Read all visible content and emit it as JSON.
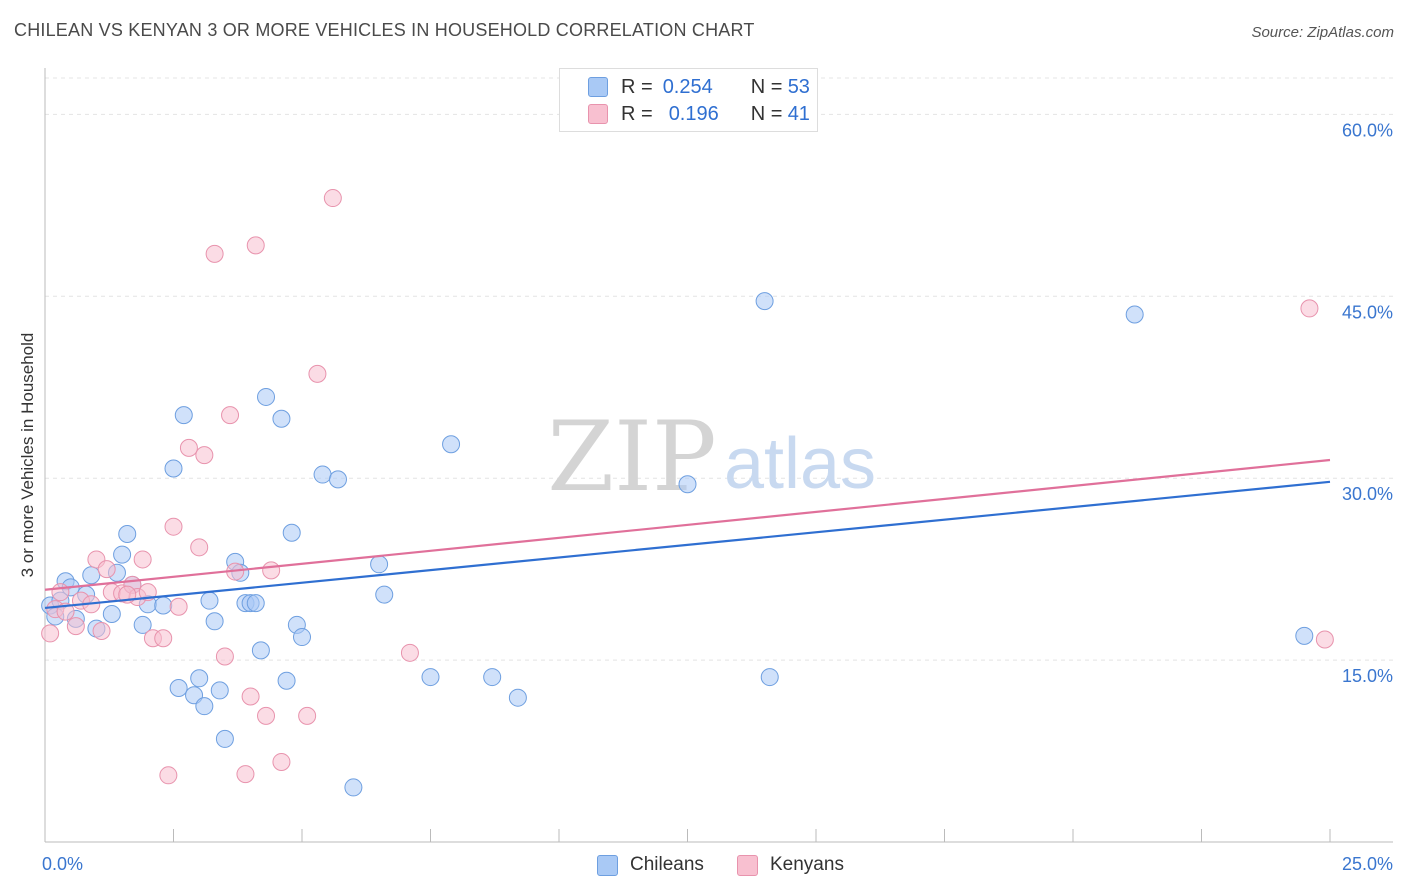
{
  "title": "CHILEAN VS KENYAN 3 OR MORE VEHICLES IN HOUSEHOLD CORRELATION CHART",
  "source": "Source: ZipAtlas.com",
  "watermark": {
    "zip": "ZIP",
    "atlas": "atlas"
  },
  "legend": {
    "rows": [
      {
        "r_label": "R =",
        "r_value": "0.254",
        "n_label": "N =",
        "n_value": "53",
        "color": "#a9c9f5",
        "border": "#6e9fe0"
      },
      {
        "r_label": "R =",
        "r_value": "0.196",
        "n_label": "N =",
        "n_value": "41",
        "color": "#f8c0d0",
        "border": "#e893ad"
      }
    ]
  },
  "bottom_legend": [
    {
      "label": "Chileans",
      "color": "#a9c9f5",
      "border": "#6e9fe0"
    },
    {
      "label": "Kenyans",
      "color": "#f8c0d0",
      "border": "#e893ad"
    }
  ],
  "chart_data": {
    "type": "scatter",
    "xlabel": "",
    "ylabel": "3 or more Vehicles in Household",
    "xlim": [
      0,
      25
    ],
    "ylim": [
      0,
      63
    ],
    "x_tick_labels": [
      "0.0%",
      "25.0%"
    ],
    "y_tick_labels": [
      "15.0%",
      "30.0%",
      "45.0%",
      "60.0%"
    ],
    "y_ticks": [
      15,
      30,
      45,
      60
    ],
    "series": [
      {
        "name": "Chileans",
        "color": "#a9c9f5",
        "stroke": "#6e9fe0",
        "line_color": "#2f6fd1",
        "trend": {
          "x": [
            0,
            25
          ],
          "y": [
            19.3,
            29.7
          ]
        },
        "points": [
          [
            0.1,
            19.5
          ],
          [
            0.2,
            18.6
          ],
          [
            0.3,
            19.9
          ],
          [
            0.4,
            21.5
          ],
          [
            0.5,
            21.0
          ],
          [
            0.6,
            18.4
          ],
          [
            0.8,
            20.4
          ],
          [
            0.9,
            22.0
          ],
          [
            1.0,
            17.6
          ],
          [
            1.3,
            18.8
          ],
          [
            1.4,
            22.2
          ],
          [
            1.5,
            23.7
          ],
          [
            1.6,
            25.4
          ],
          [
            1.7,
            21.2
          ],
          [
            1.9,
            17.9
          ],
          [
            2.0,
            19.6
          ],
          [
            2.3,
            19.5
          ],
          [
            2.5,
            30.8
          ],
          [
            2.6,
            12.7
          ],
          [
            2.7,
            35.2
          ],
          [
            2.9,
            12.1
          ],
          [
            3.0,
            13.5
          ],
          [
            3.1,
            11.2
          ],
          [
            3.2,
            19.9
          ],
          [
            3.3,
            18.2
          ],
          [
            3.4,
            12.5
          ],
          [
            3.5,
            8.5
          ],
          [
            3.7,
            23.1
          ],
          [
            3.8,
            22.2
          ],
          [
            3.9,
            19.7
          ],
          [
            4.0,
            19.7
          ],
          [
            4.1,
            19.7
          ],
          [
            4.2,
            15.8
          ],
          [
            4.3,
            36.7
          ],
          [
            4.6,
            34.9
          ],
          [
            4.7,
            13.3
          ],
          [
            4.8,
            25.5
          ],
          [
            4.9,
            17.9
          ],
          [
            5.0,
            16.9
          ],
          [
            5.4,
            30.3
          ],
          [
            5.7,
            29.9
          ],
          [
            6.0,
            4.5
          ],
          [
            6.5,
            22.9
          ],
          [
            6.6,
            20.4
          ],
          [
            7.5,
            13.6
          ],
          [
            7.9,
            32.8
          ],
          [
            8.7,
            13.6
          ],
          [
            9.2,
            11.9
          ],
          [
            12.5,
            29.5
          ],
          [
            14.0,
            44.6
          ],
          [
            14.1,
            13.6
          ],
          [
            21.2,
            43.5
          ],
          [
            24.5,
            17.0
          ]
        ]
      },
      {
        "name": "Kenyans",
        "color": "#f8c0d0",
        "stroke": "#e893ad",
        "line_color": "#e0709a",
        "trend": {
          "x": [
            0,
            25
          ],
          "y": [
            20.8,
            31.5
          ]
        },
        "points": [
          [
            0.1,
            17.2
          ],
          [
            0.2,
            19.2
          ],
          [
            0.3,
            20.6
          ],
          [
            0.6,
            17.8
          ],
          [
            0.7,
            19.9
          ],
          [
            0.9,
            19.6
          ],
          [
            1.0,
            23.3
          ],
          [
            1.1,
            17.4
          ],
          [
            1.2,
            22.5
          ],
          [
            1.3,
            20.6
          ],
          [
            1.5,
            20.5
          ],
          [
            1.7,
            21.2
          ],
          [
            1.8,
            20.2
          ],
          [
            1.9,
            23.3
          ],
          [
            2.0,
            20.6
          ],
          [
            2.1,
            16.8
          ],
          [
            2.3,
            16.8
          ],
          [
            2.5,
            26.0
          ],
          [
            2.6,
            19.4
          ],
          [
            2.8,
            32.5
          ],
          [
            3.0,
            24.3
          ],
          [
            3.1,
            31.9
          ],
          [
            3.3,
            48.5
          ],
          [
            3.5,
            15.3
          ],
          [
            3.6,
            35.2
          ],
          [
            3.7,
            22.3
          ],
          [
            4.0,
            12.0
          ],
          [
            4.1,
            49.2
          ],
          [
            4.3,
            10.4
          ],
          [
            4.4,
            22.4
          ],
          [
            4.6,
            6.6
          ],
          [
            5.1,
            10.4
          ],
          [
            5.3,
            38.6
          ],
          [
            5.6,
            53.1
          ],
          [
            7.1,
            15.6
          ],
          [
            24.6,
            44.0
          ],
          [
            24.9,
            16.7
          ],
          [
            2.4,
            5.5
          ],
          [
            3.9,
            5.6
          ],
          [
            1.6,
            20.4
          ],
          [
            0.4,
            19.0
          ]
        ]
      }
    ]
  }
}
